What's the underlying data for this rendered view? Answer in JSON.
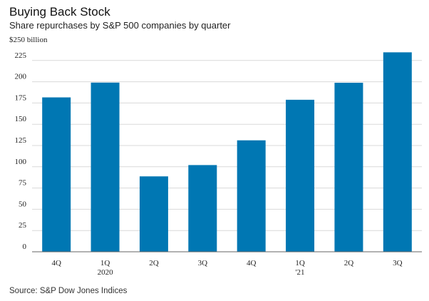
{
  "header": {
    "title": "Buying Back Stock",
    "subtitle": "Share repurchases by S&P 500 companies by quarter"
  },
  "footer": {
    "source": "Source: S&P Dow Jones Indices"
  },
  "chart_data": {
    "type": "bar",
    "title": "Buying Back Stock",
    "subtitle": "Share repurchases by S&P 500 companies by quarter",
    "unit_label": "$250 billion",
    "categories": [
      "4Q",
      "1Q",
      "2Q",
      "3Q",
      "4Q",
      "1Q",
      "2Q",
      "3Q"
    ],
    "category_sublabels": [
      "",
      "2020",
      "",
      "",
      "",
      "'21",
      "",
      ""
    ],
    "values": [
      181.6,
      199,
      88.7,
      102,
      131.1,
      178.8,
      198.8,
      234.6
    ],
    "ylim": [
      0,
      250
    ],
    "yticks": [
      0,
      25,
      50,
      75,
      100,
      125,
      150,
      175,
      200,
      225
    ],
    "grid": true,
    "bar_color": "#0077b3",
    "grid_color": "#d9d9d9",
    "source": "Source: S&P Dow Jones Indices"
  }
}
